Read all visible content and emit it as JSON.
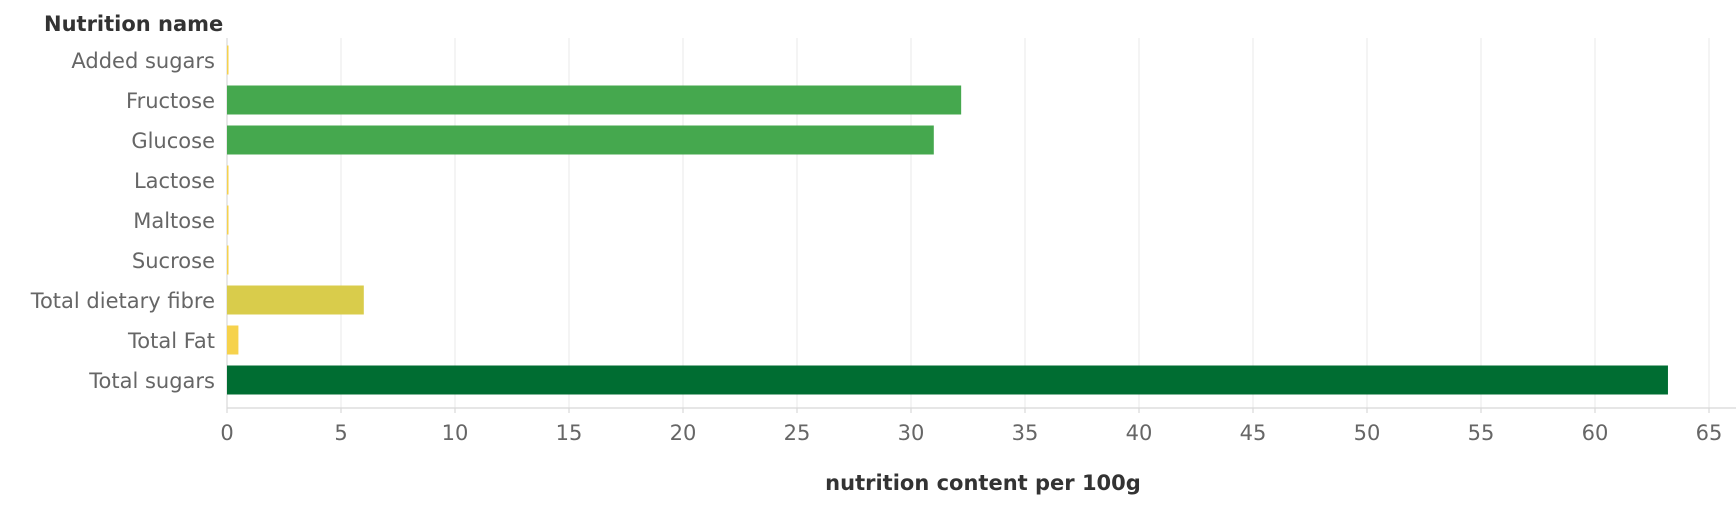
{
  "chart_data": {
    "type": "bar",
    "orientation": "horizontal",
    "y_header": "Nutrition name",
    "xlabel": "nutrition content per 100g",
    "xlim": [
      0,
      65
    ],
    "x_ticks": [
      0,
      5,
      10,
      15,
      20,
      25,
      30,
      35,
      40,
      45,
      50,
      55,
      60,
      65
    ],
    "grid": true,
    "categories": [
      "Added sugars",
      "Fructose",
      "Glucose",
      "Lactose",
      "Maltose",
      "Sucrose",
      "Total dietary fibre",
      "Total Fat",
      "Total sugars"
    ],
    "values": [
      0,
      32.2,
      31.0,
      0,
      0,
      0,
      6.0,
      0.5,
      63.2
    ],
    "colors": [
      "#f6d24c",
      "#45a84e",
      "#45a84e",
      "#f6d24c",
      "#f6d24c",
      "#f6d24c",
      "#d9cc4b",
      "#f6d24c",
      "#006d32"
    ]
  }
}
